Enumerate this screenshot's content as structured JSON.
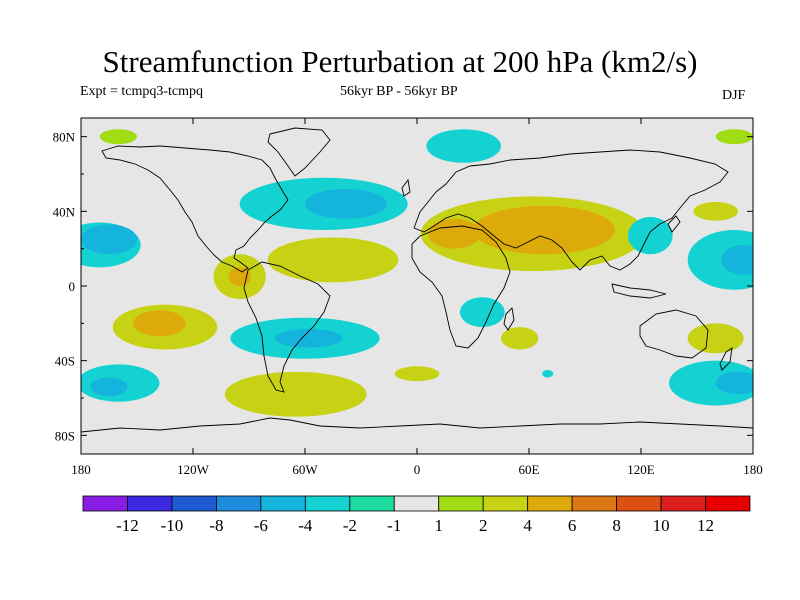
{
  "header": {
    "title": "Streamfunction Perturbation at 200 hPa (km2/s)",
    "expt": "Expt = tcmpq3-tcmpq",
    "period": "56kyr BP - 56kyr BP",
    "season": "DJF"
  },
  "chart_data": {
    "type": "heatmap",
    "projection": "cylindrical equidistant",
    "lon_range": [
      -180,
      180
    ],
    "lat_range": [
      -90,
      90
    ],
    "x_ticks": [
      "180",
      "120W",
      "60W",
      "0",
      "60E",
      "120E",
      "180"
    ],
    "y_ticks": [
      "80N",
      "40N",
      "0",
      "40S",
      "80S"
    ],
    "colorbar": {
      "labels": [
        "-12",
        "-10",
        "-8",
        "-6",
        "-4",
        "-2",
        "-1",
        "1",
        "2",
        "4",
        "6",
        "8",
        "10",
        "12"
      ],
      "colors": [
        "#8a1ee6",
        "#3c28e0",
        "#1e5ad2",
        "#1e8cdc",
        "#14b4dc",
        "#14d2d2",
        "#1edca0",
        "#e6e6e6",
        "#a0dc14",
        "#c8d214",
        "#dcaa0a",
        "#dc7814",
        "#dc5014",
        "#dc1e1e",
        "#e60000"
      ]
    },
    "regions": [
      {
        "lon": -170,
        "lat": 22,
        "rx": 22,
        "ry": 12,
        "level": -2
      },
      {
        "lon": -165,
        "lat": 25,
        "rx": 15,
        "ry": 8,
        "level": -4
      },
      {
        "lon": -160,
        "lat": 80,
        "rx": 10,
        "ry": 4,
        "level": 1
      },
      {
        "lon": -135,
        "lat": -22,
        "rx": 28,
        "ry": 12,
        "level": 2
      },
      {
        "lon": -138,
        "lat": -20,
        "rx": 14,
        "ry": 7,
        "level": 4
      },
      {
        "lon": -160,
        "lat": -52,
        "rx": 22,
        "ry": 10,
        "level": -2
      },
      {
        "lon": -165,
        "lat": -54,
        "rx": 10,
        "ry": 5,
        "level": -4
      },
      {
        "lon": -95,
        "lat": 5,
        "rx": 14,
        "ry": 12,
        "level": 2
      },
      {
        "lon": -95,
        "lat": 5,
        "rx": 6,
        "ry": 5,
        "level": 4
      },
      {
        "lon": -50,
        "lat": 44,
        "rx": 45,
        "ry": 14,
        "level": -2
      },
      {
        "lon": -38,
        "lat": 44,
        "rx": 22,
        "ry": 8,
        "level": -4
      },
      {
        "lon": -45,
        "lat": 14,
        "rx": 35,
        "ry": 12,
        "level": 2
      },
      {
        "lon": -60,
        "lat": -28,
        "rx": 40,
        "ry": 11,
        "level": -2
      },
      {
        "lon": -58,
        "lat": -28,
        "rx": 18,
        "ry": 5,
        "level": -4
      },
      {
        "lon": -65,
        "lat": -58,
        "rx": 38,
        "ry": 12,
        "level": 2
      },
      {
        "lon": 25,
        "lat": 75,
        "rx": 20,
        "ry": 9,
        "level": -2
      },
      {
        "lon": 62,
        "lat": 28,
        "rx": 60,
        "ry": 20,
        "level": 2
      },
      {
        "lon": 68,
        "lat": 30,
        "rx": 38,
        "ry": 13,
        "level": 4
      },
      {
        "lon": 20,
        "lat": 28,
        "rx": 14,
        "ry": 8,
        "level": 4
      },
      {
        "lon": 35,
        "lat": -14,
        "rx": 12,
        "ry": 8,
        "level": -2
      },
      {
        "lon": 55,
        "lat": -28,
        "rx": 10,
        "ry": 6,
        "level": 2
      },
      {
        "lon": 0,
        "lat": -47,
        "rx": 12,
        "ry": 4,
        "level": 2
      },
      {
        "lon": 70,
        "lat": -47,
        "rx": 3,
        "ry": 2,
        "level": -2
      },
      {
        "lon": 125,
        "lat": 27,
        "rx": 12,
        "ry": 10,
        "level": -2
      },
      {
        "lon": 160,
        "lat": 40,
        "rx": 12,
        "ry": 5,
        "level": 2
      },
      {
        "lon": 170,
        "lat": 14,
        "rx": 25,
        "ry": 16,
        "level": -2
      },
      {
        "lon": 175,
        "lat": 14,
        "rx": 12,
        "ry": 8,
        "level": -4
      },
      {
        "lon": 160,
        "lat": -28,
        "rx": 15,
        "ry": 8,
        "level": 2
      },
      {
        "lon": 160,
        "lat": -52,
        "rx": 25,
        "ry": 12,
        "level": -2
      },
      {
        "lon": 172,
        "lat": -52,
        "rx": 12,
        "ry": 6,
        "level": -4
      },
      {
        "lon": 170,
        "lat": 80,
        "rx": 10,
        "ry": 4,
        "level": 1
      }
    ]
  }
}
